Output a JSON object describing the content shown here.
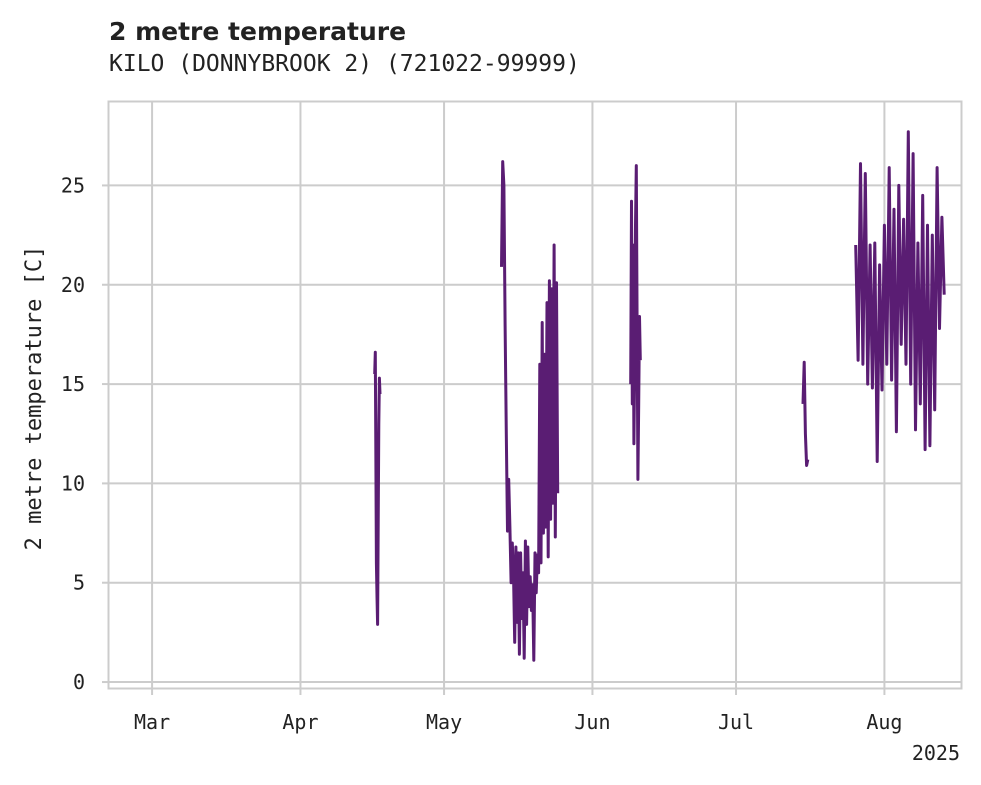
{
  "chart_data": {
    "type": "line",
    "title": "2 metre temperature",
    "subtitle": "KILO (DONNYBROOK 2) (721022-99999)",
    "xlabel": "",
    "ylabel": "2 metre temperature [C]",
    "year_label": "2025",
    "xlim": [
      "2025-02-20",
      "2025-08-17"
    ],
    "ylim": [
      -0.3,
      29.2
    ],
    "x_ticks": [
      {
        "date": "2025-03-01",
        "label": "Mar"
      },
      {
        "date": "2025-04-01",
        "label": "Apr"
      },
      {
        "date": "2025-05-01",
        "label": "May"
      },
      {
        "date": "2025-06-01",
        "label": "Jun"
      },
      {
        "date": "2025-07-01",
        "label": "Jul"
      },
      {
        "date": "2025-08-01",
        "label": "Aug"
      }
    ],
    "y_ticks": [
      0,
      5,
      10,
      15,
      20,
      25
    ],
    "grid": true,
    "line_color": "#5a1d73",
    "series": [
      {
        "segments": [
          [
            [
              "2025-04-16T12:00",
              15.5
            ],
            [
              "2025-04-16T15:00",
              16.6
            ],
            [
              "2025-04-16T18:00",
              12.0
            ],
            [
              "2025-04-16T21:00",
              6.0
            ],
            [
              "2025-04-17T00:00",
              4.3
            ],
            [
              "2025-04-17T03:00",
              2.9
            ],
            [
              "2025-04-17T06:00",
              8.0
            ],
            [
              "2025-04-17T09:00",
              13.0
            ],
            [
              "2025-04-17T12:00",
              15.3
            ],
            [
              "2025-04-17T15:00",
              14.5
            ]
          ],
          [
            [
              "2025-05-13T00:00",
              20.9
            ],
            [
              "2025-05-13T06:00",
              26.2
            ],
            [
              "2025-05-13T12:00",
              25.0
            ],
            [
              "2025-05-13T18:00",
              18.0
            ],
            [
              "2025-05-14T00:00",
              12.5
            ],
            [
              "2025-05-14T06:00",
              7.6
            ],
            [
              "2025-05-14T12:00",
              10.2
            ],
            [
              "2025-05-14T18:00",
              7.8
            ],
            [
              "2025-05-15T00:00",
              5.0
            ],
            [
              "2025-05-15T06:00",
              7.0
            ],
            [
              "2025-05-15T12:00",
              5.5
            ],
            [
              "2025-05-15T18:00",
              2.0
            ],
            [
              "2025-05-16T00:00",
              6.8
            ],
            [
              "2025-05-16T06:00",
              3.0
            ],
            [
              "2025-05-16T12:00",
              6.5
            ],
            [
              "2025-05-16T18:00",
              1.4
            ],
            [
              "2025-05-17T00:00",
              6.5
            ],
            [
              "2025-05-17T06:00",
              3.2
            ],
            [
              "2025-05-17T12:00",
              5.5
            ],
            [
              "2025-05-17T18:00",
              1.2
            ],
            [
              "2025-05-18T00:00",
              7.1
            ],
            [
              "2025-05-18T06:00",
              2.9
            ],
            [
              "2025-05-18T12:00",
              6.8
            ],
            [
              "2025-05-18T18:00",
              3.8
            ],
            [
              "2025-05-19T00:00",
              5.3
            ],
            [
              "2025-05-19T06:00",
              3.6
            ],
            [
              "2025-05-19T12:00",
              4.9
            ],
            [
              "2025-05-19T18:00",
              1.1
            ],
            [
              "2025-05-20T00:00",
              6.5
            ],
            [
              "2025-05-20T06:00",
              4.5
            ],
            [
              "2025-05-20T12:00",
              6.4
            ],
            [
              "2025-05-20T18:00",
              5.5
            ],
            [
              "2025-05-21T00:00",
              16.0
            ],
            [
              "2025-05-21T06:00",
              6.0
            ],
            [
              "2025-05-21T12:00",
              18.1
            ],
            [
              "2025-05-21T18:00",
              7.5
            ],
            [
              "2025-05-22T00:00",
              16.5
            ],
            [
              "2025-05-22T06:00",
              7.8
            ],
            [
              "2025-05-22T12:00",
              19.1
            ],
            [
              "2025-05-22T18:00",
              6.3
            ],
            [
              "2025-05-23T00:00",
              20.2
            ],
            [
              "2025-05-23T06:00",
              8.2
            ],
            [
              "2025-05-23T12:00",
              19.8
            ],
            [
              "2025-05-23T18:00",
              9.0
            ],
            [
              "2025-05-24T00:00",
              22.0
            ],
            [
              "2025-05-24T06:00",
              7.3
            ],
            [
              "2025-05-24T12:00",
              20.1
            ],
            [
              "2025-05-24T18:00",
              9.5
            ]
          ],
          [
            [
              "2025-06-09T00:00",
              15.0
            ],
            [
              "2025-06-09T04:00",
              24.2
            ],
            [
              "2025-06-09T08:00",
              14.0
            ],
            [
              "2025-06-09T12:00",
              22.0
            ],
            [
              "2025-06-09T16:00",
              12.0
            ],
            [
              "2025-06-09T20:00",
              16.0
            ],
            [
              "2025-06-10T00:00",
              23.0
            ],
            [
              "2025-06-10T04:00",
              26.0
            ],
            [
              "2025-06-10T08:00",
              18.0
            ],
            [
              "2025-06-10T12:00",
              10.2
            ],
            [
              "2025-06-10T16:00",
              14.0
            ],
            [
              "2025-06-10T20:00",
              18.4
            ],
            [
              "2025-06-11T00:00",
              16.2
            ]
          ],
          [
            [
              "2025-07-15T00:00",
              14.0
            ],
            [
              "2025-07-15T06:00",
              16.1
            ],
            [
              "2025-07-15T12:00",
              12.5
            ],
            [
              "2025-07-15T18:00",
              10.9
            ],
            [
              "2025-07-16T00:00",
              11.2
            ]
          ],
          [
            [
              "2025-07-26T00:00",
              22.0
            ],
            [
              "2025-07-26T12:00",
              16.2
            ],
            [
              "2025-07-27T00:00",
              26.1
            ],
            [
              "2025-07-27T12:00",
              16.0
            ],
            [
              "2025-07-28T00:00",
              25.6
            ],
            [
              "2025-07-28T12:00",
              15.0
            ],
            [
              "2025-07-29T00:00",
              22.0
            ],
            [
              "2025-07-29T12:00",
              14.8
            ],
            [
              "2025-07-30T00:00",
              22.1
            ],
            [
              "2025-07-30T12:00",
              11.1
            ],
            [
              "2025-07-31T00:00",
              21.0
            ],
            [
              "2025-07-31T12:00",
              14.7
            ],
            [
              "2025-08-01T00:00",
              23.0
            ],
            [
              "2025-08-01T12:00",
              16.0
            ],
            [
              "2025-08-02T00:00",
              25.9
            ],
            [
              "2025-08-02T12:00",
              15.2
            ],
            [
              "2025-08-03T00:00",
              23.8
            ],
            [
              "2025-08-03T12:00",
              12.6
            ],
            [
              "2025-08-04T00:00",
              25.0
            ],
            [
              "2025-08-04T12:00",
              17.0
            ],
            [
              "2025-08-05T00:00",
              23.3
            ],
            [
              "2025-08-05T12:00",
              16.0
            ],
            [
              "2025-08-06T00:00",
              27.7
            ],
            [
              "2025-08-06T12:00",
              15.0
            ],
            [
              "2025-08-07T00:00",
              26.6
            ],
            [
              "2025-08-07T12:00",
              12.7
            ],
            [
              "2025-08-08T00:00",
              22.1
            ],
            [
              "2025-08-08T12:00",
              14.0
            ],
            [
              "2025-08-09T00:00",
              24.5
            ],
            [
              "2025-08-09T12:00",
              11.7
            ],
            [
              "2025-08-10T00:00",
              23.0
            ],
            [
              "2025-08-10T12:00",
              11.9
            ],
            [
              "2025-08-11T00:00",
              22.5
            ],
            [
              "2025-08-11T12:00",
              13.7
            ],
            [
              "2025-08-12T00:00",
              25.9
            ],
            [
              "2025-08-12T12:00",
              17.8
            ],
            [
              "2025-08-13T00:00",
              23.4
            ],
            [
              "2025-08-13T12:00",
              19.5
            ]
          ]
        ]
      }
    ]
  }
}
